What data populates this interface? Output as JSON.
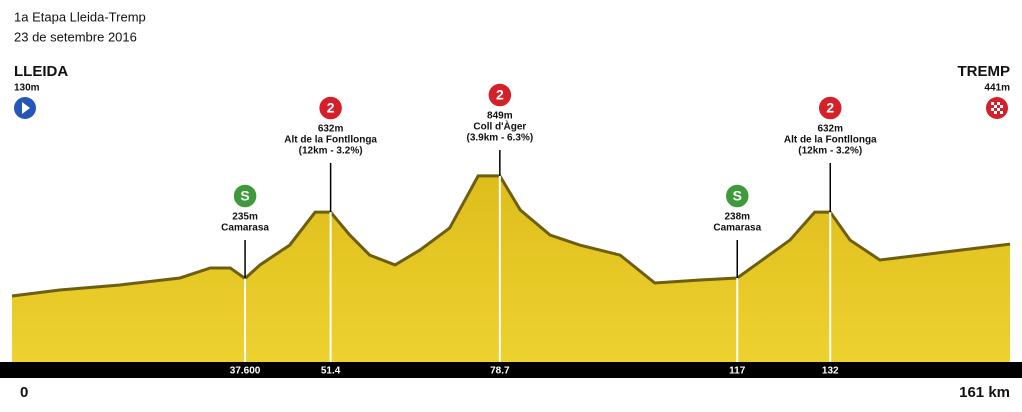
{
  "chart_data": {
    "type": "area",
    "title": "1a Etapa Lleida-Tremp",
    "subtitle": "23 de setembre 2016",
    "color": "#e6c51e",
    "x": [
      0,
      7.7,
      17.4,
      27.1,
      32,
      35.2,
      37.6,
      40,
      44.8,
      48.9,
      51.4,
      54.5,
      57.7,
      61.8,
      65.8,
      70.6,
      75.2,
      78.7,
      82,
      86.8,
      91.6,
      98.1,
      103.7,
      111,
      117,
      120.6,
      125.5,
      129.5,
      132,
      135.2,
      140,
      146.5,
      153,
      161
    ],
    "values": [
      130,
      166,
      196,
      238,
      298,
      298,
      235,
      316,
      435,
      632,
      632,
      495,
      375,
      316,
      405,
      537,
      849,
      849,
      645,
      495,
      435,
      375,
      208,
      226,
      238,
      334,
      465,
      632,
      632,
      465,
      346,
      375,
      405,
      441
    ],
    "xlim": [
      0,
      161
    ],
    "ylim": [
      -265,
      1100
    ],
    "xticks": [
      0,
      {
        "value": 37.6,
        "label": "37.600"
      },
      51.4,
      78.7,
      117,
      132,
      {
        "value": 161,
        "label": "161 km"
      }
    ],
    "places": [
      {
        "name": "LLEIDA",
        "altitude": "130m",
        "color": "#2457b8"
      },
      {
        "name": "TREMP",
        "altitude": "441m",
        "color": "#d4202a"
      }
    ],
    "points": [
      {
        "x": 37.6,
        "badge": "S",
        "color": "#3e9a3a",
        "lines": [
          "235m",
          "Camarasa"
        ]
      },
      {
        "x": 51.4,
        "badge": "2",
        "color": "#d4202a",
        "lines": [
          "632m",
          "Alt de la Fontllonga",
          "(12km - 3.2%)"
        ]
      },
      {
        "x": 78.7,
        "badge": "2",
        "color": "#d4202a",
        "lines": [
          "849m",
          "Coll d'Àger",
          "(3.9km - 6.3%)"
        ]
      },
      {
        "x": 117,
        "badge": "S",
        "color": "#3e9a3a",
        "lines": [
          "238m",
          "Camarasa"
        ]
      },
      {
        "x": 132,
        "badge": "2",
        "color": "#d4202a",
        "lines": [
          "632m",
          "Alt de la Fontllonga",
          "(12km - 3.2%)"
        ]
      }
    ]
  }
}
